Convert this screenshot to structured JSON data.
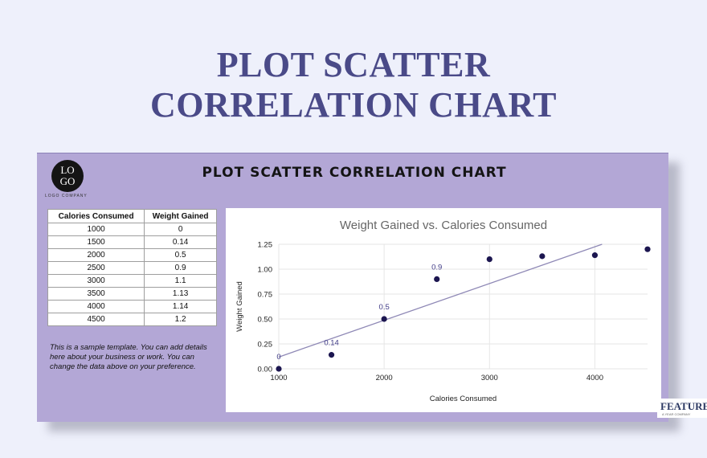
{
  "page": {
    "title_line1": "PLOT SCATTER",
    "title_line2": "CORRELATION CHART"
  },
  "card": {
    "logo_line1": "LO",
    "logo_line2": "GO",
    "logo_company": "LOGO COMPANY",
    "title": "PLOT SCATTER CORRELATION CHART",
    "note": "This is a sample template. You can add details here about your business or work. You can change the data above on your preference."
  },
  "table": {
    "headers": [
      "Calories Consumed",
      "Weight Gained"
    ],
    "rows": [
      [
        "1000",
        "0"
      ],
      [
        "1500",
        "0.14"
      ],
      [
        "2000",
        "0.5"
      ],
      [
        "2500",
        "0.9"
      ],
      [
        "3000",
        "1.1"
      ],
      [
        "3500",
        "1.13"
      ],
      [
        "4000",
        "1.14"
      ],
      [
        "4500",
        "1.2"
      ]
    ]
  },
  "badge": {
    "text": "FEATURES",
    "sub": "A YEAR COMPANY"
  },
  "colors": {
    "point": "#1c1650",
    "trendline": "#8f89b6",
    "label": "#3f3a86",
    "grid": "#e6e6e6"
  },
  "chart_data": {
    "type": "scatter",
    "title": "Weight Gained vs. Calories Consumed",
    "xlabel": "Calories Consumed",
    "ylabel": "Weight Gained",
    "x": [
      1000,
      1500,
      2000,
      2500,
      3000,
      3500,
      4000,
      4500
    ],
    "y": [
      0,
      0.14,
      0.5,
      0.9,
      1.1,
      1.13,
      1.14,
      1.2
    ],
    "data_labels": [
      "0",
      "0.14",
      "0.5",
      "0.9",
      "",
      "",
      "",
      ""
    ],
    "xlim": [
      1000,
      4500
    ],
    "ylim": [
      0,
      1.25
    ],
    "xticks": [
      1000,
      2000,
      3000,
      4000
    ],
    "yticks": [
      "0.00",
      "0.25",
      "0.50",
      "0.75",
      "1.00",
      "1.25"
    ],
    "trendline": "linear",
    "grid": true,
    "legend": "none"
  }
}
